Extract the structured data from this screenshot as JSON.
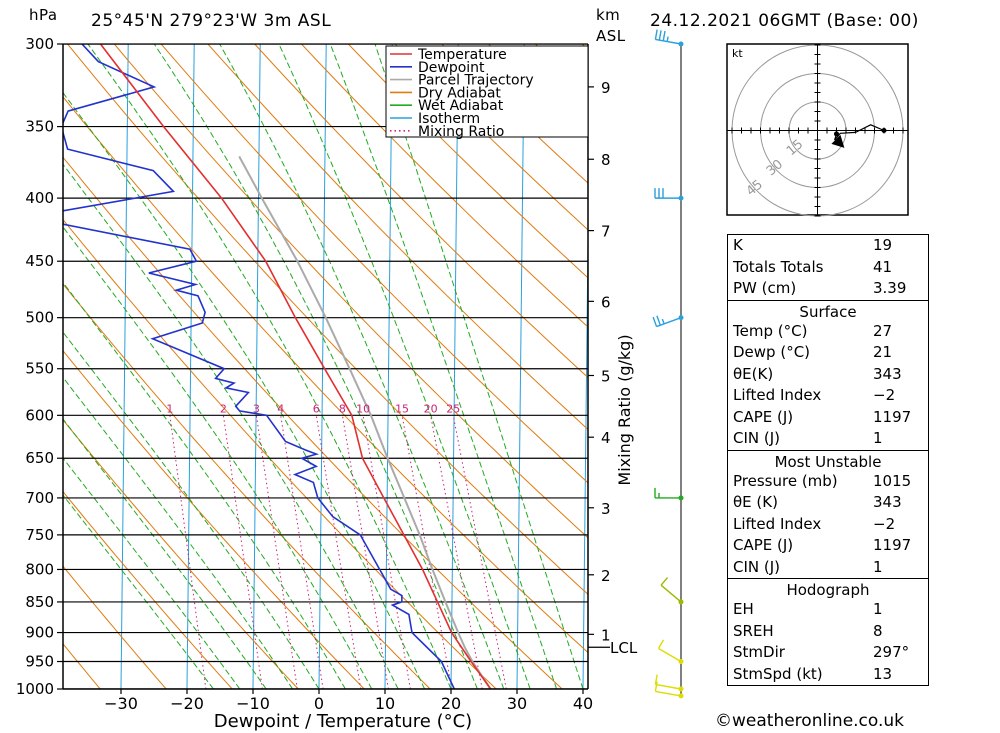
{
  "header": {
    "hpa_unit": "hPa",
    "location": "25°45'N  279°23'W  3m  ASL",
    "km_unit": "km",
    "asl_unit": "ASL",
    "datetime": "24.12.2021  06GMT  (Base: 00)"
  },
  "chart_data": {
    "type": "skew-t log-p",
    "xlabel": "Dewpoint / Temperature (°C)",
    "ylabel_left": "hPa",
    "ylabel_right": "Mixing Ratio (g/kg)",
    "xlim": [
      -40,
      40
    ],
    "ylim": [
      1000,
      300
    ],
    "pressure_ticks": [
      "300",
      "350",
      "400",
      "450",
      "500",
      "550",
      "600",
      "650",
      "700",
      "750",
      "800",
      "850",
      "900",
      "950",
      "1000"
    ],
    "temperature_ticks": [
      "−30",
      "−20",
      "−10",
      "0",
      "10",
      "20",
      "30",
      "40"
    ],
    "km_ticks": [
      {
        "km": "9",
        "p": 325
      },
      {
        "km": "8",
        "p": 372
      },
      {
        "km": "7",
        "p": 425
      },
      {
        "km": "6",
        "p": 485
      },
      {
        "km": "5",
        "p": 557
      },
      {
        "km": "4",
        "p": 625
      },
      {
        "km": "3",
        "p": 713
      },
      {
        "km": "2",
        "p": 808
      },
      {
        "km": "1",
        "p": 903
      }
    ],
    "lcl": {
      "label": "LCL",
      "p": 925
    },
    "mixing_ratio_labels": [
      "1",
      "2",
      "3",
      "4",
      "6",
      "8",
      "10",
      "15",
      "20",
      "25"
    ],
    "legend": [
      "Temperature",
      "Dewpoint",
      "Parcel Trajectory",
      "Dry Adiabat",
      "Wet Adiabat",
      "Isotherm",
      "Mixing Ratio"
    ],
    "colors": {
      "temperature": "#e23030",
      "dewpoint": "#2233cc",
      "parcel": "#aaaaaa",
      "dry_adiabat": "#e07b10",
      "wet_adiabat": "#22aa22",
      "isotherm": "#2aa0dd",
      "mixing_ratio": "#cc2277"
    },
    "temperature_profile": [
      [
        1013,
        27
      ],
      [
        1000,
        26
      ],
      [
        950,
        23
      ],
      [
        900,
        20
      ],
      [
        850,
        17.8
      ],
      [
        800,
        15.5
      ],
      [
        750,
        12.6
      ],
      [
        700,
        9.5
      ],
      [
        650,
        6.2
      ],
      [
        600,
        4.5
      ],
      [
        550,
        0.3
      ],
      [
        500,
        -4.2
      ],
      [
        450,
        -8.8
      ],
      [
        400,
        -15.6
      ],
      [
        350,
        -24.5
      ],
      [
        300,
        -34.2
      ]
    ],
    "dewpoint_profile": [
      [
        1013,
        21
      ],
      [
        1000,
        20.5
      ],
      [
        950,
        18.5
      ],
      [
        900,
        14
      ],
      [
        870,
        13.5
      ],
      [
        855,
        11
      ],
      [
        850,
        12.4
      ],
      [
        840,
        12.4
      ],
      [
        830,
        10.7
      ],
      [
        800,
        9
      ],
      [
        750,
        6
      ],
      [
        725,
        1.8
      ],
      [
        700,
        -0.5
      ],
      [
        680,
        -1.2
      ],
      [
        670,
        -4
      ],
      [
        660,
        -0.8
      ],
      [
        650,
        -3
      ],
      [
        645,
        -0.8
      ],
      [
        640,
        -2.5
      ],
      [
        630,
        -5.5
      ],
      [
        600,
        -8.4
      ],
      [
        595,
        -12.5
      ],
      [
        590,
        -13.1
      ],
      [
        575,
        -11.2
      ],
      [
        570,
        -14.6
      ],
      [
        565,
        -13.4
      ],
      [
        560,
        -16.2
      ],
      [
        550,
        -14.9
      ],
      [
        520,
        -25.8
      ],
      [
        505,
        -18.3
      ],
      [
        495,
        -17.9
      ],
      [
        480,
        -19
      ],
      [
        475,
        -22.3
      ],
      [
        470,
        -19.4
      ],
      [
        460,
        -26.5
      ],
      [
        450,
        -19.3
      ],
      [
        440,
        -20.3
      ],
      [
        420,
        -39.5
      ],
      [
        410,
        -40
      ],
      [
        395,
        -22.9
      ],
      [
        380,
        -26
      ],
      [
        365,
        -39
      ],
      [
        350,
        -40
      ],
      [
        340,
        -39
      ],
      [
        325,
        -26
      ],
      [
        310,
        -34.5
      ],
      [
        300,
        -37
      ]
    ],
    "parcel_trajectory": [
      [
        1013,
        27
      ],
      [
        1000,
        26
      ],
      [
        950,
        23.2
      ],
      [
        925,
        22
      ],
      [
        900,
        21
      ],
      [
        850,
        19
      ],
      [
        800,
        17
      ],
      [
        750,
        15
      ],
      [
        700,
        12.6
      ],
      [
        650,
        10
      ],
      [
        600,
        7.4
      ],
      [
        550,
        4.1
      ],
      [
        500,
        0.4
      ],
      [
        450,
        -4
      ],
      [
        400,
        -9.5
      ],
      [
        370,
        -13
      ]
    ],
    "wind_profile": [
      {
        "p": 1013,
        "dir": 280,
        "kt": 10
      },
      {
        "p": 1000,
        "dir": 280,
        "kt": 10
      },
      {
        "p": 950,
        "dir": 300,
        "kt": 10
      },
      {
        "p": 850,
        "dir": 310,
        "kt": 10
      },
      {
        "p": 700,
        "dir": 270,
        "kt": 15
      },
      {
        "p": 500,
        "dir": 250,
        "kt": 25
      },
      {
        "p": 400,
        "dir": 270,
        "kt": 30
      },
      {
        "p": 300,
        "dir": 280,
        "kt": 35
      }
    ]
  },
  "hodograph": {
    "unit": "kt",
    "ring_labels": [
      "15",
      "30",
      "45"
    ],
    "trace_kt": [
      [
        10,
        -1.8
      ],
      [
        9,
        -5
      ],
      [
        12,
        -1.5
      ],
      [
        20,
        -1
      ],
      [
        28,
        3
      ],
      [
        35,
        0
      ]
    ],
    "storm_motion_kt": [
      11,
      -6
    ]
  },
  "indices": {
    "rows": [
      {
        "k": "K",
        "v": "19"
      },
      {
        "k": "Totals Totals",
        "v": "41"
      },
      {
        "k": "PW (cm)",
        "v": "3.39"
      }
    ]
  },
  "surface": {
    "title": "Surface",
    "rows": [
      {
        "k": "Temp (°C)",
        "v": "27"
      },
      {
        "k": "Dewp (°C)",
        "v": "21"
      },
      {
        "k": "θE(K)",
        "v": "343"
      },
      {
        "k": "Lifted Index",
        "v": "−2"
      },
      {
        "k": "CAPE (J)",
        "v": "1197"
      },
      {
        "k": "CIN (J)",
        "v": "1"
      }
    ]
  },
  "most_unstable": {
    "title": "Most Unstable",
    "rows": [
      {
        "k": "Pressure (mb)",
        "v": "1015"
      },
      {
        "k": "θE (K)",
        "v": "343"
      },
      {
        "k": "Lifted Index",
        "v": "−2"
      },
      {
        "k": "CAPE (J)",
        "v": "1197"
      },
      {
        "k": "CIN (J)",
        "v": "1"
      }
    ]
  },
  "hodograph_stats": {
    "title": "Hodograph",
    "rows": [
      {
        "k": "EH",
        "v": "1"
      },
      {
        "k": "SREH",
        "v": "8"
      },
      {
        "k": "StmDir",
        "v": "297°"
      },
      {
        "k": "StmSpd (kt)",
        "v": "13"
      }
    ]
  },
  "credit": "©weatheronline.co.uk"
}
